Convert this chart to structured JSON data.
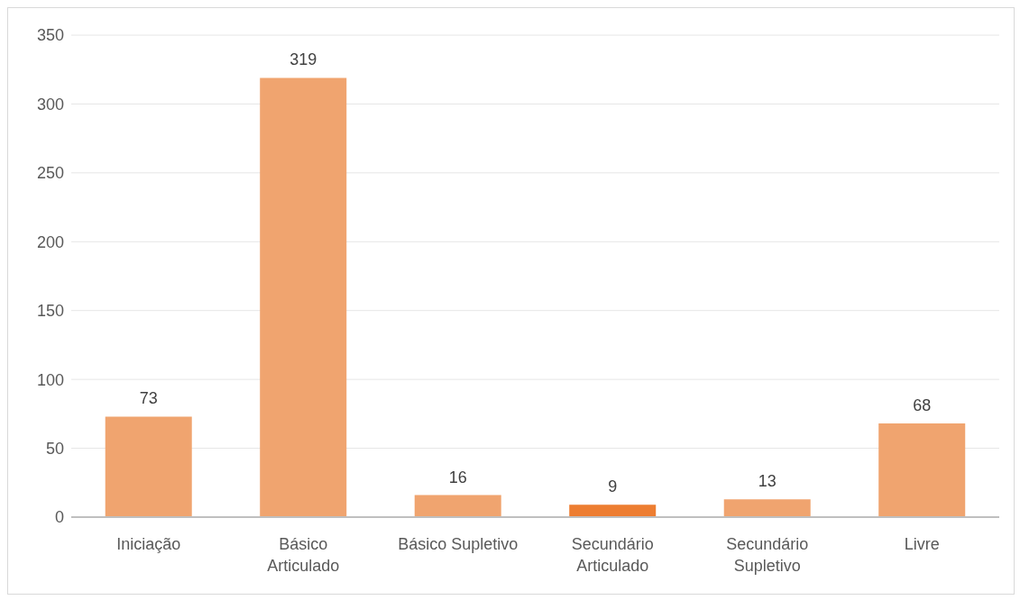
{
  "chart_data": {
    "type": "bar",
    "categories": [
      "Iniciação",
      "Básico Articulado",
      "Básico Supletivo",
      "Secundário Articulado",
      "Secundário Supletivo",
      "Livre"
    ],
    "values": [
      73,
      319,
      16,
      9,
      13,
      68
    ],
    "colors": [
      "#f0a46f",
      "#f0a46f",
      "#f0a46f",
      "#ed7d31",
      "#f0a46f",
      "#f0a46f"
    ],
    "ylim": [
      0,
      350
    ],
    "yticks": [
      0,
      50,
      100,
      150,
      200,
      250,
      300,
      350
    ],
    "grid": "y",
    "data_labels": true,
    "legend": false
  }
}
